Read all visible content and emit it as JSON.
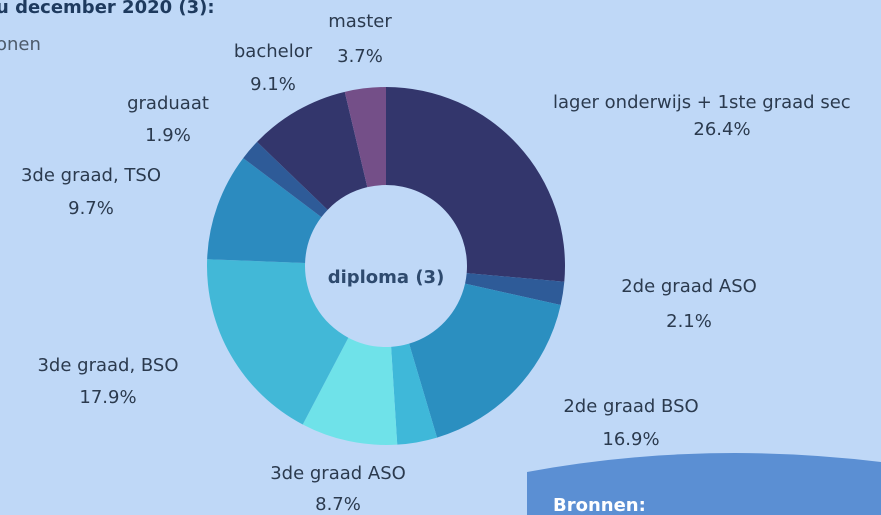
{
  "chart_data": {
    "type": "donut",
    "title": "u december 2020 (3):",
    "subtitle": "onen",
    "center_label": "diploma (3)",
    "categories": [
      "lager onderwijs + 1ste graad sec",
      "2de graad ASO",
      "2de graad BSO",
      null,
      "3de graad ASO",
      "3de graad, BSO",
      "3de graad, TSO",
      "graduaat",
      "bachelor",
      "master"
    ],
    "values": [
      26.4,
      2.1,
      16.9,
      3.6,
      8.7,
      17.9,
      9.7,
      1.9,
      9.1,
      3.7
    ],
    "value_labels": [
      "26.4%",
      "2.1%",
      "16.9%",
      null,
      "8.7%",
      "17.9%",
      "9.7%",
      "1.9%",
      "9.1%",
      "3.7%"
    ],
    "colors": [
      "#33366c",
      "#2e5b98",
      "#2b8fc0",
      "#3fb8d9",
      "#6fe2e9",
      "#42b8d7",
      "#2c8bbf",
      "#2e5b98",
      "#33366c",
      "#744f88"
    ]
  },
  "footer": {
    "title": "Bronnen:"
  }
}
